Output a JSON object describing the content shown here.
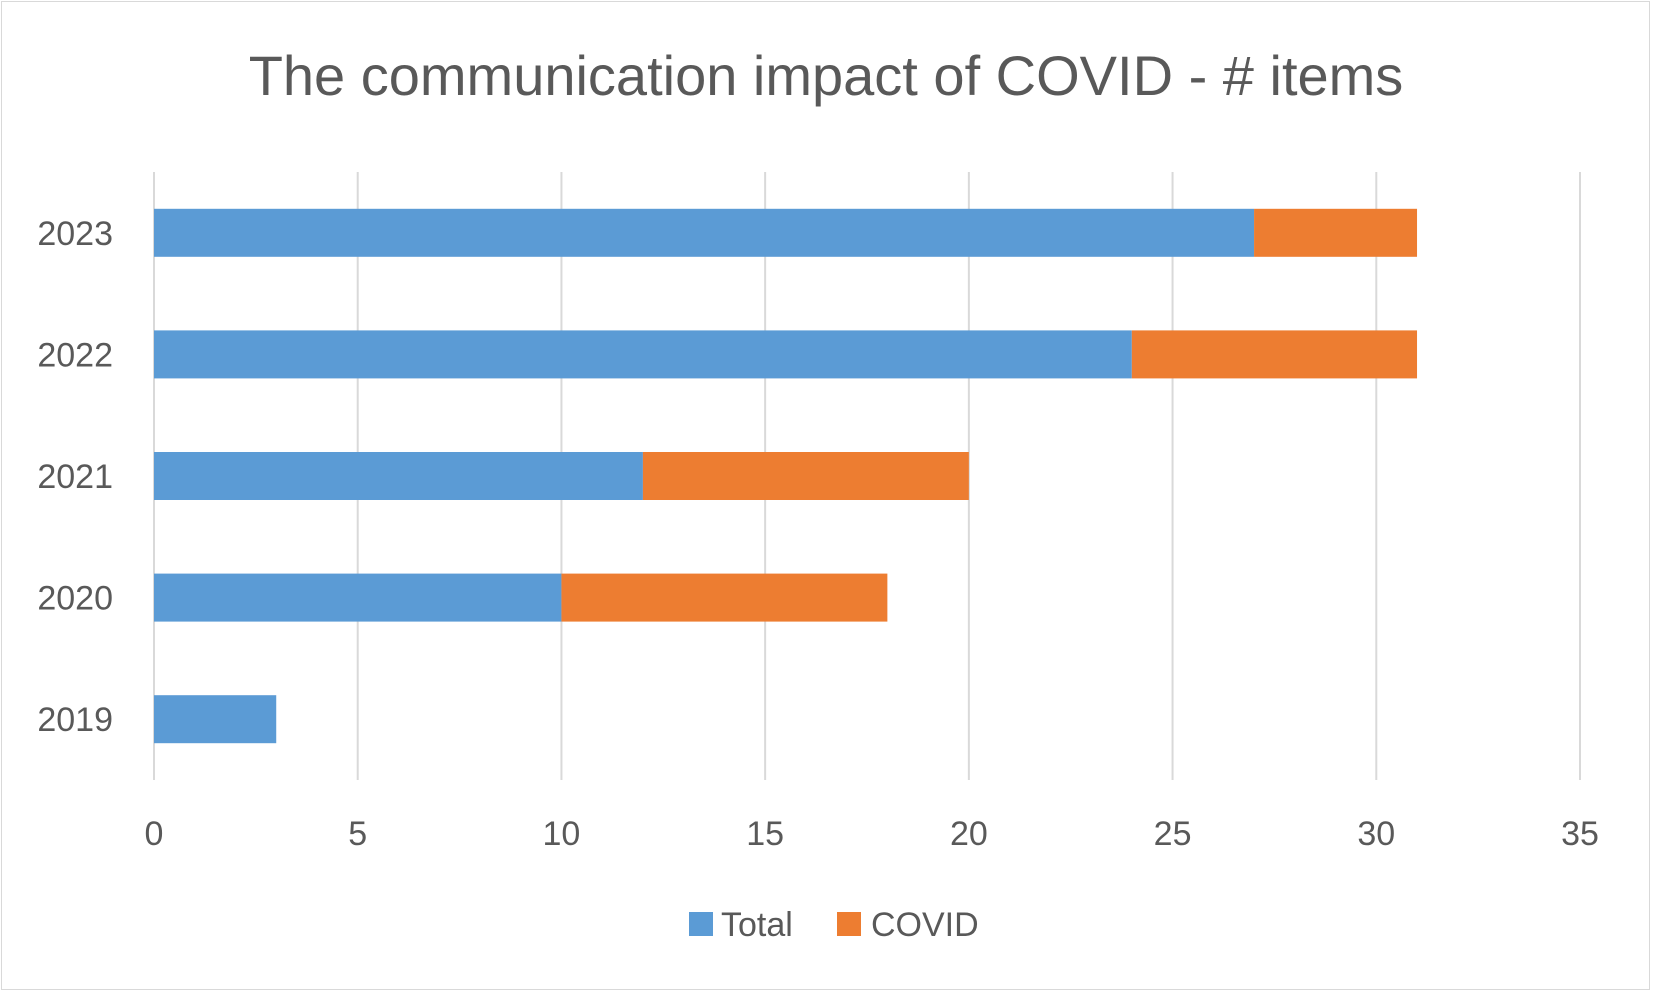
{
  "chart_data": {
    "type": "bar",
    "orientation": "horizontal",
    "stacked": true,
    "title": "The communication impact of COVID - # items",
    "categories": [
      "2019",
      "2020",
      "2021",
      "2022",
      "2023"
    ],
    "series": [
      {
        "name": "Total",
        "color": "#5b9bd5",
        "values": [
          3,
          10,
          12,
          24,
          27
        ]
      },
      {
        "name": "COVID",
        "color": "#ed7d31",
        "values": [
          0,
          8,
          8,
          7,
          4
        ]
      }
    ],
    "xlim": [
      0,
      35
    ],
    "xticks": [
      "0",
      "5",
      "10",
      "15",
      "20",
      "25",
      "30",
      "35"
    ],
    "grid": true,
    "legend_position": "bottom"
  }
}
